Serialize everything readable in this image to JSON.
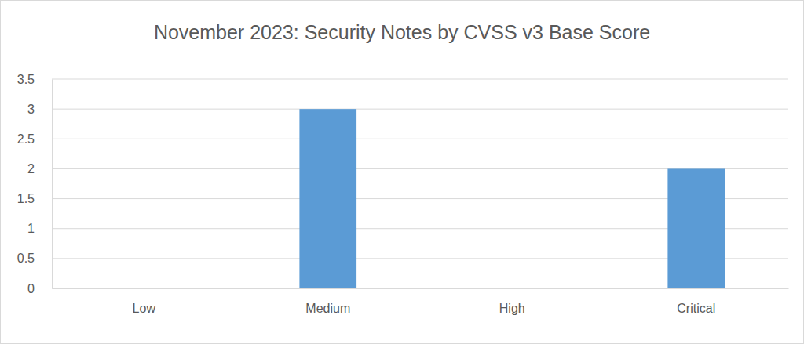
{
  "chart_data": {
    "type": "bar",
    "title": "November 2023: Security Notes by CVSS v3 Base Score",
    "categories": [
      "Low",
      "Medium",
      "High",
      "Critical"
    ],
    "values": [
      0,
      3,
      0,
      2
    ],
    "color": "#5b9bd5",
    "ylim": [
      0,
      3.5
    ],
    "yticks": [
      0,
      0.5,
      1,
      1.5,
      2,
      2.5,
      3,
      3.5
    ],
    "grid": true
  }
}
